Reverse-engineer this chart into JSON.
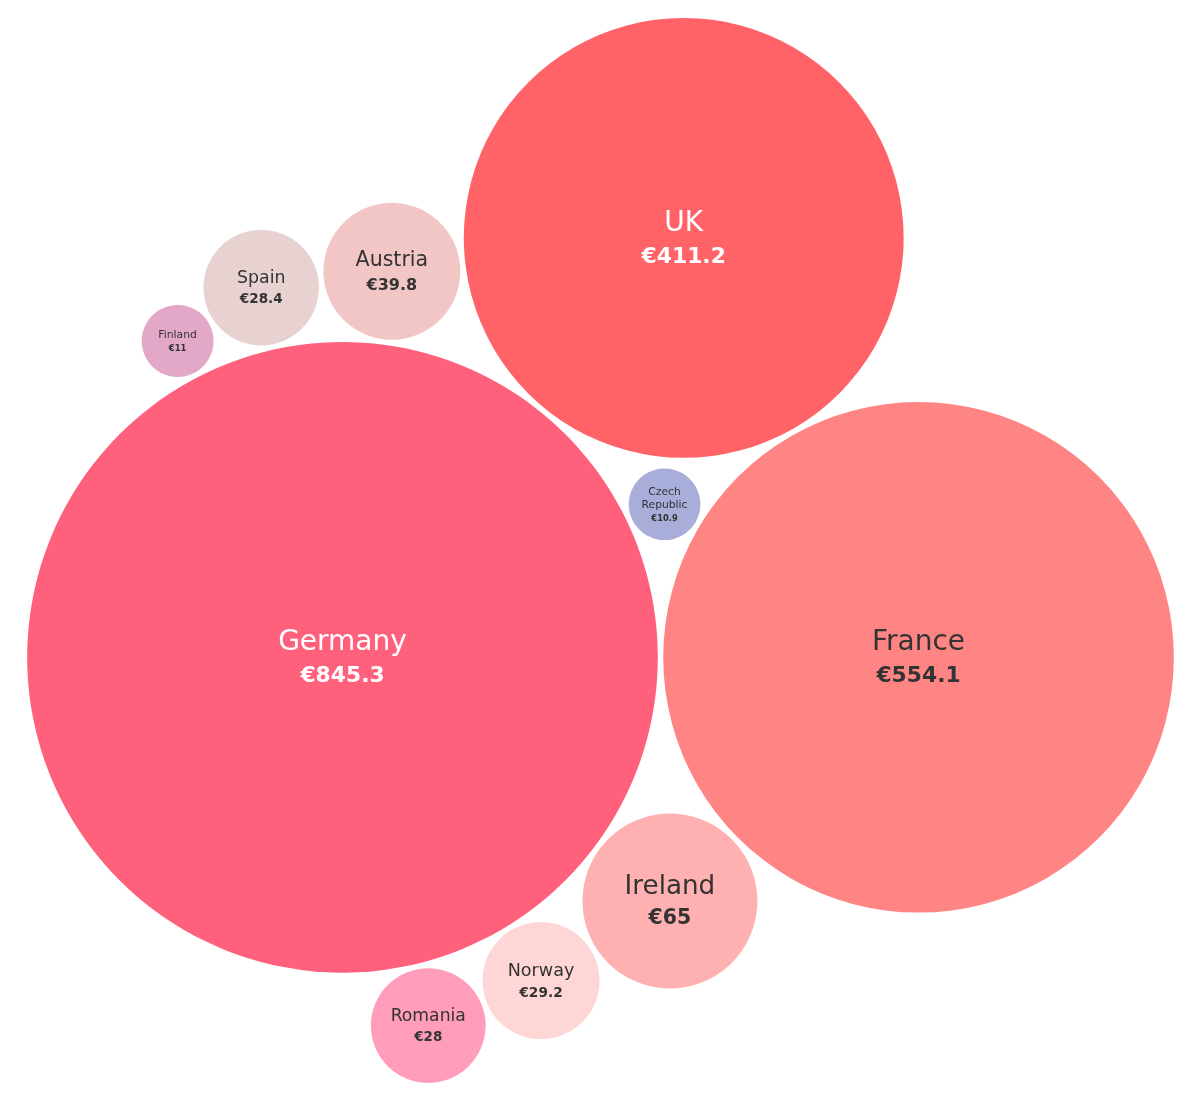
{
  "chart_data": {
    "type": "other",
    "categories": [
      "Germany",
      "France",
      "UK",
      "Ireland",
      "Austria",
      "Norway",
      "Spain",
      "Romania",
      "Finland",
      "Czech Republic"
    ],
    "values": [
      845.3,
      554.1,
      411.2,
      65,
      39.8,
      29.2,
      28.4,
      28,
      11,
      10.9
    ],
    "value_labels": [
      "€845.3",
      "€554.1",
      "€411.2",
      "€65",
      "€39.8",
      "€29.2",
      "€28.4",
      "€28",
      "€11",
      "€10.9"
    ],
    "colors": [
      "#ff607c",
      "#ff8585",
      "#ff6368",
      "#ffb0b0",
      "#f3c6c6",
      "#ffd6d6",
      "#e8d1d1",
      "#ff9dba",
      "#e3a8c8",
      "#a9add9"
    ]
  }
}
